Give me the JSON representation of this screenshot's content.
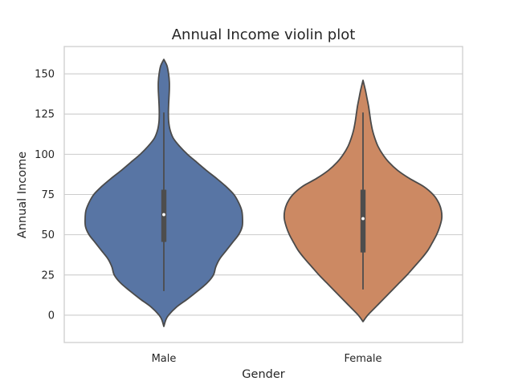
{
  "chart_data": {
    "type": "violin",
    "title": "Annual Income violin plot",
    "xlabel": "Gender",
    "ylabel": "Annual Income",
    "categories": [
      "Male",
      "Female"
    ],
    "ylim": [
      -17,
      167
    ],
    "yticks": [
      0,
      25,
      50,
      75,
      100,
      125,
      150
    ],
    "grid": "horizontal",
    "colors": {
      "Male": "#5875a4",
      "Female": "#cc8963",
      "outline": "#4a4a4a",
      "grid": "#cccccc",
      "box": "#4d4d4d"
    },
    "series": [
      {
        "category": "Male",
        "box": {
          "whisker_low": 15,
          "q1": 45.5,
          "median": 62.5,
          "q3": 78,
          "whisker_high": 126
        },
        "density": {
          "y": [
            -7,
            -3,
            0,
            5,
            10,
            15,
            20,
            25,
            30,
            35,
            40,
            45,
            50,
            55,
            60,
            65,
            70,
            75,
            80,
            85,
            90,
            95,
            100,
            105,
            110,
            115,
            120,
            125,
            130,
            135,
            140,
            145,
            150,
            155,
            159
          ],
          "w": [
            0,
            0.025,
            0.06,
            0.16,
            0.3,
            0.43,
            0.55,
            0.63,
            0.66,
            0.71,
            0.79,
            0.87,
            0.95,
            0.995,
            1.0,
            0.99,
            0.95,
            0.89,
            0.79,
            0.67,
            0.54,
            0.42,
            0.3,
            0.2,
            0.12,
            0.08,
            0.062,
            0.058,
            0.06,
            0.065,
            0.07,
            0.07,
            0.06,
            0.04,
            0
          ]
        }
      },
      {
        "category": "Female",
        "box": {
          "whisker_low": 16,
          "q1": 39,
          "median": 60,
          "q3": 78,
          "whisker_high": 126
        },
        "density": {
          "y": [
            -4,
            0,
            5,
            10,
            15,
            20,
            25,
            30,
            35,
            40,
            45,
            50,
            55,
            60,
            65,
            70,
            75,
            80,
            85,
            90,
            95,
            100,
            105,
            110,
            115,
            120,
            125,
            130,
            135,
            140,
            146
          ],
          "w": [
            0,
            0.06,
            0.16,
            0.26,
            0.36,
            0.46,
            0.56,
            0.65,
            0.74,
            0.82,
            0.88,
            0.935,
            0.975,
            1.0,
            0.995,
            0.96,
            0.89,
            0.77,
            0.59,
            0.44,
            0.33,
            0.25,
            0.19,
            0.15,
            0.12,
            0.1,
            0.085,
            0.07,
            0.05,
            0.03,
            0
          ]
        }
      }
    ]
  }
}
